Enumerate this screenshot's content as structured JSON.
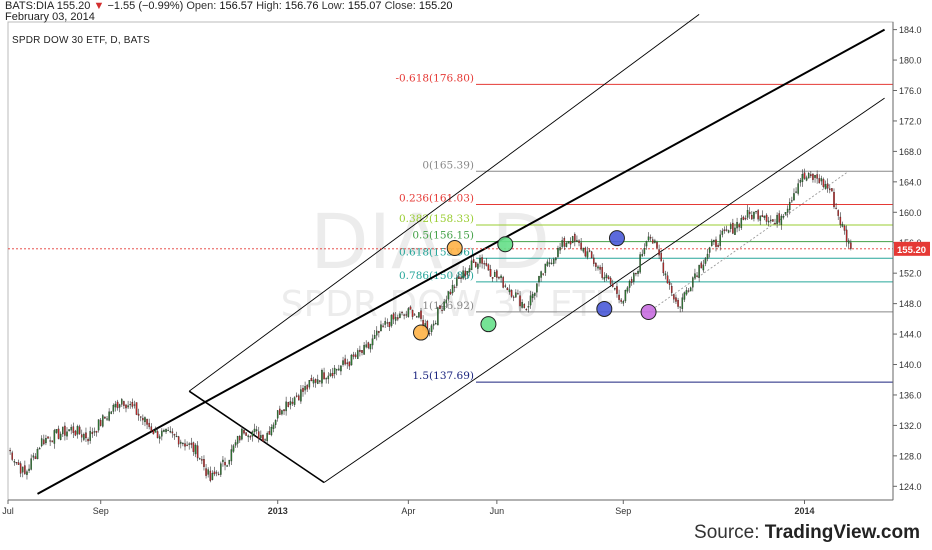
{
  "header": {
    "symbol": "BATS:DIA",
    "last": "155.20",
    "change": "−1.55 (−0.99%)",
    "open_label": "Open:",
    "open": "156.57",
    "high_label": "High:",
    "high": "156.76",
    "low_label": "Low:",
    "low": "155.07",
    "close_label": "Close:",
    "close": "155.20",
    "date": "February 03, 2014"
  },
  "chart_title": "SPDR DOW 30 ETF, D, BATS",
  "watermark": {
    "symbol": "DIA, D",
    "name": "SPDR DOW 30 ETF"
  },
  "source": {
    "prefix": "Source: ",
    "brand": "TradingView.com"
  },
  "colors": {
    "up": "#2e7d32",
    "down": "#c62828",
    "price_line": "#e53935",
    "price_tag_bg": "#e53935",
    "channel": "#000000"
  },
  "chart_data": {
    "type": "candlestick",
    "y_axis": {
      "ticks": [
        124,
        128,
        132,
        136,
        140,
        144,
        148,
        152,
        156,
        160,
        164,
        168,
        172,
        176,
        180,
        184
      ],
      "ylim": [
        122.2,
        185
      ]
    },
    "x_axis": {
      "labels": [
        "Jul",
        "Sep",
        "2013",
        "Apr",
        "Jun",
        "Sep",
        "2014"
      ],
      "bar_index": [
        0,
        44,
        128,
        190,
        232,
        292,
        378
      ]
    },
    "last_price": 155.2,
    "last_price_label": "155.20",
    "price_anchors": [
      {
        "i": 0,
        "p": 129.0
      },
      {
        "i": 8,
        "p": 125.5
      },
      {
        "i": 16,
        "p": 130.0
      },
      {
        "i": 30,
        "p": 131.5
      },
      {
        "i": 38,
        "p": 130.5
      },
      {
        "i": 54,
        "p": 135.5
      },
      {
        "i": 60,
        "p": 134.0
      },
      {
        "i": 70,
        "p": 131.0
      },
      {
        "i": 80,
        "p": 130.5
      },
      {
        "i": 90,
        "p": 128.5
      },
      {
        "i": 96,
        "p": 124.8
      },
      {
        "i": 104,
        "p": 127.5
      },
      {
        "i": 112,
        "p": 131.5
      },
      {
        "i": 122,
        "p": 130.5
      },
      {
        "i": 130,
        "p": 134.5
      },
      {
        "i": 140,
        "p": 136.5
      },
      {
        "i": 148,
        "p": 138.5
      },
      {
        "i": 160,
        "p": 140.0
      },
      {
        "i": 170,
        "p": 142.0
      },
      {
        "i": 180,
        "p": 145.5
      },
      {
        "i": 192,
        "p": 147.0
      },
      {
        "i": 200,
        "p": 144.5
      },
      {
        "i": 208,
        "p": 149.0
      },
      {
        "i": 218,
        "p": 152.5
      },
      {
        "i": 224,
        "p": 154.0
      },
      {
        "i": 230,
        "p": 152.0
      },
      {
        "i": 238,
        "p": 150.0
      },
      {
        "i": 246,
        "p": 147.5
      },
      {
        "i": 252,
        "p": 151.0
      },
      {
        "i": 258,
        "p": 154.0
      },
      {
        "i": 266,
        "p": 156.5
      },
      {
        "i": 272,
        "p": 155.5
      },
      {
        "i": 278,
        "p": 153.5
      },
      {
        "i": 286,
        "p": 150.5
      },
      {
        "i": 292,
        "p": 148.5
      },
      {
        "i": 298,
        "p": 152.0
      },
      {
        "i": 304,
        "p": 157.5
      },
      {
        "i": 310,
        "p": 153.5
      },
      {
        "i": 318,
        "p": 147.5
      },
      {
        "i": 326,
        "p": 152.0
      },
      {
        "i": 334,
        "p": 155.5
      },
      {
        "i": 342,
        "p": 157.5
      },
      {
        "i": 350,
        "p": 159.5
      },
      {
        "i": 358,
        "p": 160.0
      },
      {
        "i": 364,
        "p": 158.5
      },
      {
        "i": 370,
        "p": 161.0
      },
      {
        "i": 376,
        "p": 164.5
      },
      {
        "i": 384,
        "p": 164.5
      },
      {
        "i": 390,
        "p": 163.0
      },
      {
        "i": 396,
        "p": 158.0
      },
      {
        "i": 400,
        "p": 155.2
      }
    ],
    "fib_levels": [
      {
        "label": "-0.618(176.80)",
        "price": 176.8,
        "color": "#e53935"
      },
      {
        "label": "0(165.39)",
        "price": 165.39,
        "color": "#888888"
      },
      {
        "label": "0.236(161.03)",
        "price": 161.03,
        "color": "#e53935"
      },
      {
        "label": "0.382(158.33)",
        "price": 158.33,
        "color": "#9acd32"
      },
      {
        "label": "0.5(156.15)",
        "price": 156.15,
        "color": "#43a047"
      },
      {
        "label": "0.618(153.96)",
        "price": 153.96,
        "color": "#26a69a"
      },
      {
        "label": "0.786(150.86)",
        "price": 150.86,
        "color": "#26a69a"
      },
      {
        "label": "1(146.92)",
        "price": 146.92,
        "color": "#888888"
      },
      {
        "label": "1.5(137.69)",
        "price": 137.69,
        "color": "#1a237e"
      }
    ],
    "pitchfork": {
      "median": [
        [
          14,
          123.0
        ],
        [
          416,
          184.0
        ]
      ],
      "upper": [
        [
          86,
          136.5
        ],
        [
          328,
          186.0
        ]
      ],
      "lower": [
        [
          150,
          124.5
        ],
        [
          416,
          175.0
        ]
      ],
      "handle": [
        [
          86,
          136.5
        ],
        [
          150,
          124.5
        ]
      ]
    },
    "markers": [
      {
        "i": 212,
        "p": 155.3,
        "color": "#ffb347"
      },
      {
        "i": 196,
        "p": 144.2,
        "color": "#ffb347"
      },
      {
        "i": 236,
        "p": 155.8,
        "color": "#66e08a"
      },
      {
        "i": 228,
        "p": 145.3,
        "color": "#66e08a"
      },
      {
        "i": 289,
        "p": 156.6,
        "color": "#4a5ad8"
      },
      {
        "i": 283,
        "p": 147.3,
        "color": "#4a5ad8"
      },
      {
        "i": 304,
        "p": 146.9,
        "color": "#c86ee0"
      }
    ]
  }
}
